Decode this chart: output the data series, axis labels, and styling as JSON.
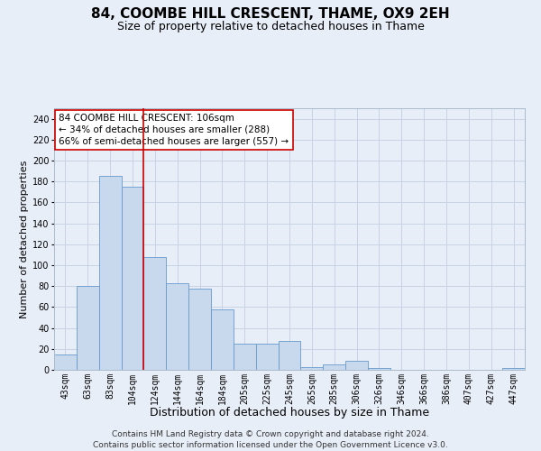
{
  "title": "84, COOMBE HILL CRESCENT, THAME, OX9 2EH",
  "subtitle": "Size of property relative to detached houses in Thame",
  "xlabel": "Distribution of detached houses by size in Thame",
  "ylabel": "Number of detached properties",
  "categories": [
    "43sqm",
    "63sqm",
    "83sqm",
    "104sqm",
    "124sqm",
    "144sqm",
    "164sqm",
    "184sqm",
    "205sqm",
    "225sqm",
    "245sqm",
    "265sqm",
    "285sqm",
    "306sqm",
    "326sqm",
    "346sqm",
    "366sqm",
    "386sqm",
    "407sqm",
    "427sqm",
    "447sqm"
  ],
  "values": [
    15,
    80,
    185,
    175,
    108,
    83,
    78,
    58,
    25,
    25,
    28,
    3,
    5,
    9,
    2,
    0,
    0,
    0,
    0,
    0,
    2
  ],
  "bar_color": "#c8d9ee",
  "bar_edge_color": "#6699cc",
  "grid_color": "#c8d4e4",
  "background_color": "#e8eef8",
  "vline_x_index": 3,
  "annotation_text": "84 COOMBE HILL CRESCENT: 106sqm\n← 34% of detached houses are smaller (288)\n66% of semi-detached houses are larger (557) →",
  "annotation_box_color": "#ffffff",
  "annotation_box_edge": "#cc0000",
  "footer_text": "Contains HM Land Registry data © Crown copyright and database right 2024.\nContains public sector information licensed under the Open Government Licence v3.0.",
  "ylim": [
    0,
    250
  ],
  "yticks": [
    0,
    20,
    40,
    60,
    80,
    100,
    120,
    140,
    160,
    180,
    200,
    220,
    240
  ],
  "title_fontsize": 11,
  "subtitle_fontsize": 9,
  "xlabel_fontsize": 9,
  "ylabel_fontsize": 8,
  "tick_fontsize": 7,
  "footer_fontsize": 6.5,
  "annotation_fontsize": 7.5
}
